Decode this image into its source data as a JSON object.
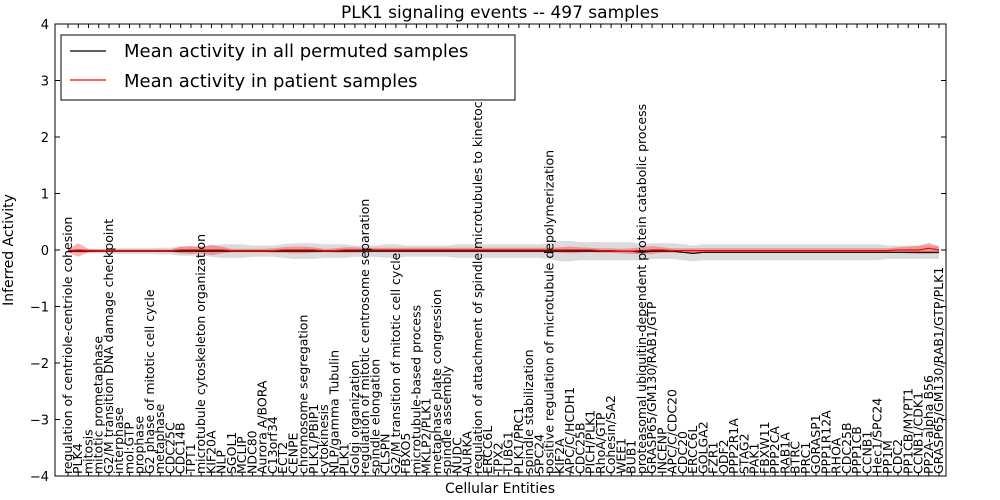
{
  "chart_data": {
    "type": "line",
    "title": "PLK1 signaling events -- 497 samples",
    "xlabel": "Cellular Entities",
    "ylabel": "Inferred Activity",
    "ylim": [
      -4,
      4
    ],
    "yticks": [
      "4",
      "3",
      "2",
      "1",
      "0",
      "−1",
      "−2",
      "−3",
      "−4"
    ],
    "legend": {
      "location": "top-left",
      "entries": [
        {
          "name": "Mean activity in all permuted samples",
          "color": "#000000"
        },
        {
          "name": "Mean activity in patient samples",
          "color": "#ff0000"
        }
      ]
    },
    "categories": [
      "regulation of centriole-centriole cohesion",
      "PLK4",
      "mitosis",
      "mitotic prometaphase",
      "G2/M transition DNA damage checkpoint",
      "interphase",
      "mol:GTP",
      "prophase",
      "G2 phase of mitotic cell cycle",
      "metaphase",
      "CDC25C",
      "CDC14B",
      "TPT1",
      "microtubule cytoskeleton organization",
      "KIF20A",
      "NLP",
      "SGOL1",
      "MCLIP",
      "NDC80",
      "Aurora A/BORA",
      "C13orf34",
      "ECT2",
      "CENPE",
      "chromosome segregation",
      "PLK1/PBIP1",
      "cytokinesis",
      "NLP/gamma Tubulin",
      "PLK1",
      "Golgi organization",
      "regulation of mitotic centrosome separation",
      "spindle elongation",
      "CLSPN",
      "G2/M transition of mitotic cell cycle",
      "FBXO5",
      "microtubule-based process",
      "MKLP2/PLK1",
      "metaphase plate congression",
      "spindle assembly",
      "NUDC",
      "AURKA",
      "regulation of attachment of spindle microtubules to kinetochore",
      "ERCC6L",
      "TPX2",
      "TUBG1",
      "PLK1/PRC1",
      "spindle stabilization",
      "SPC24",
      "positive regulation of microtubule depolymerization",
      "KIF2A",
      "APC/C/HCDH1",
      "CDC25B",
      "PICH/PLK1",
      "RhoA/GTP",
      "Cohesin/SA2",
      "WEE1",
      "BUB1",
      "proteasomal ubiquitin-dependent protein catabolic process",
      "GRASP65/GM130/RAB1/GTP",
      "INCENP",
      "APC/C/CDC20",
      "CDC20",
      "ERCC6L",
      "GOLGA2",
      "FZR1",
      "ODF2",
      "PPP2R1A",
      "STAG2",
      "PAK1",
      "FBXW11",
      "PPP2CA",
      "RAB1A",
      "BTRC",
      "PRC1",
      "GORASP1",
      "PPP1R12A",
      "RHOA",
      "CDC25B",
      "PPP1CB",
      "CCNB1",
      "Hec1/SPC24",
      "PP1M",
      "CDC2",
      "PP1CB/MYPT1",
      "CCNB1/CDK1",
      "PP2A-alpha B56",
      "GRASP65/GM130/RAB1/GTP/PLK1"
    ],
    "series": [
      {
        "name": "Mean activity in all permuted samples",
        "color": "#000000",
        "values": [
          -0.02,
          -0.02,
          -0.02,
          -0.02,
          -0.02,
          -0.02,
          -0.02,
          -0.02,
          -0.02,
          -0.02,
          -0.02,
          -0.02,
          -0.02,
          -0.02,
          -0.02,
          -0.02,
          -0.02,
          -0.02,
          -0.02,
          -0.02,
          -0.02,
          -0.02,
          -0.02,
          -0.02,
          -0.02,
          -0.02,
          -0.02,
          -0.02,
          -0.02,
          -0.02,
          -0.02,
          -0.02,
          -0.02,
          -0.02,
          -0.02,
          -0.02,
          -0.02,
          -0.02,
          -0.02,
          -0.02,
          -0.02,
          -0.02,
          -0.02,
          -0.02,
          -0.02,
          -0.02,
          -0.02,
          -0.02,
          -0.02,
          -0.02,
          -0.02,
          -0.02,
          -0.02,
          -0.02,
          -0.02,
          -0.02,
          -0.04,
          -0.02,
          -0.02,
          -0.02,
          -0.04,
          -0.06,
          -0.04,
          -0.04,
          -0.04,
          -0.04,
          -0.04,
          -0.04,
          -0.04,
          -0.04,
          -0.04,
          -0.04,
          -0.04,
          -0.04,
          -0.04,
          -0.04,
          -0.04,
          -0.04,
          -0.04,
          -0.04,
          -0.04,
          -0.04,
          -0.04,
          -0.04,
          -0.04,
          -0.04
        ],
        "band": [
          0.03,
          0.03,
          0.04,
          0.04,
          0.05,
          0.05,
          0.05,
          0.05,
          0.05,
          0.06,
          0.06,
          0.08,
          0.08,
          0.08,
          0.1,
          0.12,
          0.12,
          0.12,
          0.1,
          0.1,
          0.1,
          0.12,
          0.14,
          0.14,
          0.14,
          0.12,
          0.12,
          0.12,
          0.1,
          0.1,
          0.1,
          0.12,
          0.12,
          0.1,
          0.1,
          0.1,
          0.1,
          0.1,
          0.12,
          0.12,
          0.12,
          0.12,
          0.12,
          0.12,
          0.12,
          0.12,
          0.12,
          0.14,
          0.18,
          0.18,
          0.16,
          0.16,
          0.16,
          0.16,
          0.16,
          0.16,
          0.14,
          0.14,
          0.14,
          0.14,
          0.14,
          0.14,
          0.14,
          0.14,
          0.14,
          0.14,
          0.14,
          0.14,
          0.14,
          0.14,
          0.14,
          0.14,
          0.14,
          0.14,
          0.14,
          0.14,
          0.14,
          0.14,
          0.14,
          0.14,
          0.12,
          0.12,
          0.12,
          0.12,
          0.12,
          0.12
        ]
      },
      {
        "name": "Mean activity in patient samples",
        "color": "#ff0000",
        "values": [
          -0.01,
          0.0,
          -0.01,
          -0.01,
          -0.01,
          -0.01,
          -0.01,
          -0.01,
          -0.01,
          -0.01,
          -0.01,
          0.0,
          0.0,
          0.0,
          0.0,
          0.0,
          -0.01,
          -0.01,
          -0.01,
          -0.01,
          -0.01,
          0.0,
          0.0,
          0.0,
          0.0,
          -0.01,
          -0.01,
          0.0,
          0.0,
          0.0,
          0.0,
          0.0,
          0.0,
          0.0,
          0.0,
          0.0,
          0.0,
          0.0,
          0.0,
          0.0,
          0.0,
          0.0,
          0.0,
          0.0,
          0.0,
          0.0,
          0.0,
          0.0,
          0.0,
          0.0,
          0.0,
          0.0,
          -0.01,
          -0.01,
          -0.02,
          -0.02,
          -0.01,
          0.0,
          0.0,
          -0.01,
          -0.01,
          -0.01,
          -0.01,
          -0.01,
          -0.01,
          -0.01,
          -0.01,
          -0.01,
          -0.01,
          -0.01,
          -0.01,
          -0.01,
          -0.01,
          -0.01,
          -0.01,
          -0.01,
          -0.01,
          -0.01,
          -0.01,
          -0.01,
          -0.01,
          0.0,
          0.0,
          0.0,
          0.03,
          0.0
        ],
        "band": [
          0.03,
          0.12,
          0.03,
          0.02,
          0.02,
          0.02,
          0.02,
          0.02,
          0.02,
          0.02,
          0.02,
          0.06,
          0.07,
          0.06,
          0.09,
          0.06,
          0.03,
          0.03,
          0.03,
          0.03,
          0.04,
          0.05,
          0.06,
          0.06,
          0.05,
          0.03,
          0.04,
          0.05,
          0.05,
          0.04,
          0.04,
          0.04,
          0.04,
          0.04,
          0.04,
          0.04,
          0.04,
          0.04,
          0.04,
          0.04,
          0.04,
          0.04,
          0.04,
          0.04,
          0.04,
          0.04,
          0.04,
          0.04,
          0.05,
          0.06,
          0.05,
          0.04,
          0.04,
          0.04,
          0.04,
          0.05,
          0.06,
          0.07,
          0.05,
          0.04,
          0.04,
          0.04,
          0.04,
          0.04,
          0.04,
          0.04,
          0.04,
          0.04,
          0.04,
          0.04,
          0.04,
          0.04,
          0.04,
          0.04,
          0.04,
          0.04,
          0.04,
          0.04,
          0.04,
          0.04,
          0.04,
          0.05,
          0.06,
          0.07,
          0.1,
          0.06
        ]
      }
    ]
  }
}
